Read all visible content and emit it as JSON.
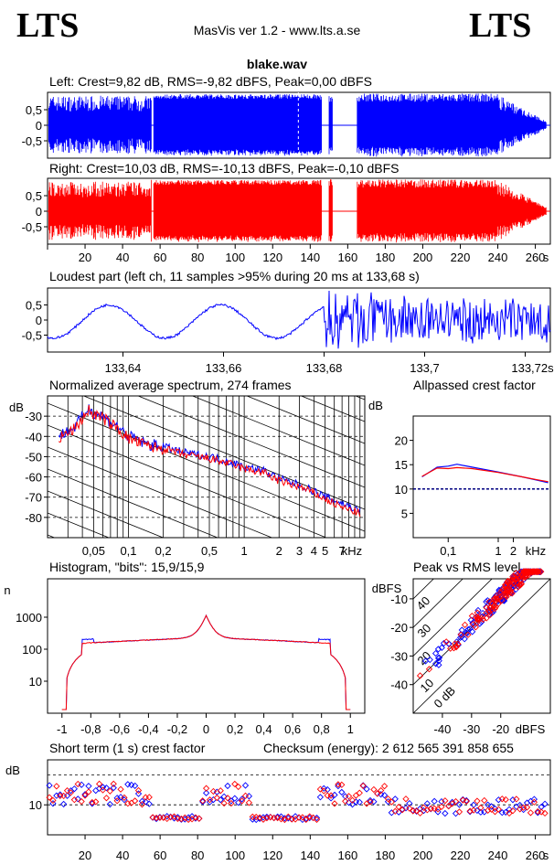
{
  "header": {
    "logo_left": "LTS",
    "logo_right": "LTS",
    "app_title": "MasVis ver 1.2 - www.lts.a.se",
    "filename": "blake.wav"
  },
  "colors": {
    "left": "#0000ff",
    "right": "#ff0000",
    "axis": "#000000"
  },
  "panels": {
    "left_wave_title": "Left: Crest=9,82 dB, RMS=-9,82 dBFS, Peak=0,00 dBFS",
    "right_wave_title": "Right: Crest=10,03 dB, RMS=-10,13 dBFS, Peak=-0,10 dBFS",
    "loudest_title": "Loudest part (left  ch, 11 samples >95% during 20 ms at 133,68 s)",
    "spectrum_title": "Normalized average spectrum, 274 frames",
    "allpass_title": "Allpassed crest factor",
    "histogram_title": "Histogram, \"bits\": 15,9/15,9",
    "peakrms_title": "Peak vs RMS level",
    "crest_title": "Short term (1 s) crest factor",
    "checksum": "Checksum (energy):  2 612 565 391 858 655"
  },
  "chart_data": [
    {
      "id": "left_waveform",
      "type": "area",
      "title": "Left: Crest=9,82 dB, RMS=-9,82 dBFS, Peak=0,00 dBFS",
      "yticks": [
        "0.5",
        "0",
        "-0.5"
      ],
      "ylim": [
        -1,
        1
      ],
      "xlim": [
        0,
        268
      ],
      "silences": [
        [
          0,
          0.5
        ],
        [
          55.5,
          56.5
        ],
        [
          146,
          150
        ],
        [
          152,
          165
        ],
        [
          266,
          268
        ]
      ],
      "marker": 133.68,
      "series": [
        {
          "color": "#0000ff"
        }
      ]
    },
    {
      "id": "right_waveform",
      "type": "area",
      "title": "Right: Crest=10,03 dB, RMS=-10,13 dBFS, Peak=-0,10 dBFS",
      "yticks": [
        "0.5",
        "0",
        "-0.5"
      ],
      "ylim": [
        -1,
        1
      ],
      "xlim": [
        0,
        268
      ],
      "xticks": [
        "20",
        "40",
        "60",
        "80",
        "100",
        "120",
        "140",
        "160",
        "180",
        "200",
        "220",
        "240",
        "260",
        "s"
      ],
      "silences": [
        [
          0,
          0.5
        ],
        [
          55.5,
          56.5
        ],
        [
          146,
          150
        ],
        [
          152,
          165
        ],
        [
          266,
          268
        ]
      ],
      "series": [
        {
          "color": "#ff0000"
        }
      ]
    },
    {
      "id": "loudest_part",
      "type": "line",
      "title": "Loudest part (left  ch, 11 samples >95% during 20 ms at 133,68 s)",
      "yticks": [
        "0.5",
        "0",
        "-0.5"
      ],
      "ylim": [
        -1,
        1
      ],
      "xlim": [
        133.625,
        133.725
      ],
      "xticks": [
        "133,64",
        "133,66",
        "133,68",
        "133,7",
        "133,72s"
      ],
      "series": [
        {
          "color": "#0000ff"
        }
      ]
    },
    {
      "id": "spectrum",
      "type": "line",
      "title": "Normalized average spectrum, 274 frames",
      "ylabel": "dB",
      "yticks": [
        "-30",
        "-40",
        "-50",
        "-60",
        "-70",
        "-80"
      ],
      "ylim": [
        -90,
        -20
      ],
      "xticks": [
        "0,05",
        "0,1",
        "0,2",
        "0,5",
        "1",
        "2",
        "3",
        "4",
        "5",
        "7",
        "kHz"
      ],
      "xscale": "log",
      "x": [
        0.025,
        0.035,
        0.045,
        0.05,
        0.06,
        0.08,
        0.1,
        0.15,
        0.2,
        0.3,
        0.5,
        0.7,
        1,
        1.5,
        2,
        3,
        4,
        5,
        7,
        10
      ],
      "series": [
        {
          "color": "#0000ff",
          "values": [
            -40,
            -35,
            -26,
            -28,
            -30,
            -35,
            -40,
            -44,
            -45,
            -48,
            -50,
            -52,
            -55,
            -57,
            -61,
            -64,
            -67,
            -70,
            -73,
            -77
          ]
        },
        {
          "color": "#ff0000",
          "values": [
            -41,
            -36,
            -27,
            -29,
            -31,
            -36,
            -41,
            -45,
            -46,
            -49,
            -51,
            -53,
            -56,
            -58,
            -62,
            -65,
            -68,
            -71,
            -75,
            -78
          ]
        }
      ]
    },
    {
      "id": "allpass_crest",
      "type": "line",
      "title": "Allpassed crest factor",
      "ylabel": "dB",
      "yticks": [
        "20",
        "15",
        "10",
        "5"
      ],
      "ylim": [
        0,
        25
      ],
      "xticks": [
        "0,1",
        "1",
        "2",
        "kHz"
      ],
      "xscale": "log",
      "x": [
        0.03,
        0.06,
        0.1,
        0.15,
        0.3,
        1,
        3,
        6,
        10
      ],
      "series": [
        {
          "color": "#0000ff",
          "values": [
            12.5,
            14.5,
            14.7,
            15.1,
            14.5,
            13.5,
            12.5,
            11.8,
            11.3
          ]
        },
        {
          "color": "#ff0000",
          "values": [
            12.6,
            14.3,
            14.2,
            14.4,
            14.2,
            13.4,
            12.5,
            11.9,
            11.5
          ]
        }
      ],
      "reference_line": 10
    },
    {
      "id": "histogram",
      "type": "line",
      "title": "Histogram, \"bits\": 15,9/15,9",
      "ylabel": "n",
      "yticks": [
        "1000",
        "100",
        "10"
      ],
      "yscale": "log",
      "xticks": [
        "-1",
        "-0,8",
        "-0,6",
        "-0,4",
        "-0,2",
        "0",
        "0,2",
        "0,4",
        "0,6",
        "0,8",
        "1"
      ],
      "xlim": [
        -1.1,
        1.1
      ],
      "series": [
        {
          "color": "#0000ff"
        },
        {
          "color": "#ff0000"
        }
      ]
    },
    {
      "id": "peak_vs_rms",
      "type": "scatter",
      "title": "Peak vs RMS level",
      "ylabel": "dBFS",
      "xlabel": "dBFS",
      "yticks": [
        "-10",
        "-20",
        "-30",
        "-40"
      ],
      "xticks": [
        "-40",
        "-30",
        "-20",
        "dBFS"
      ],
      "xlim": [
        -50,
        -3
      ],
      "ylim": [
        -50,
        -3
      ],
      "diagonal_labels": [
        "40",
        "30",
        "20",
        "10",
        "0 dB"
      ],
      "series": [
        {
          "color": "#0000ff"
        },
        {
          "color": "#ff0000"
        }
      ]
    },
    {
      "id": "short_term_crest",
      "type": "scatter",
      "title": "Short term (1 s) crest factor",
      "ylabel": "dB",
      "yticks": [
        "10"
      ],
      "ylim": [
        0,
        25
      ],
      "xticks": [
        "20",
        "40",
        "60",
        "80",
        "100",
        "120",
        "140",
        "160",
        "180",
        "200",
        "220",
        "240",
        "260",
        "s"
      ],
      "xlim": [
        0,
        268
      ],
      "reference_lines": [
        10,
        20
      ],
      "series": [
        {
          "color": "#0000ff"
        },
        {
          "color": "#ff0000"
        }
      ]
    }
  ]
}
